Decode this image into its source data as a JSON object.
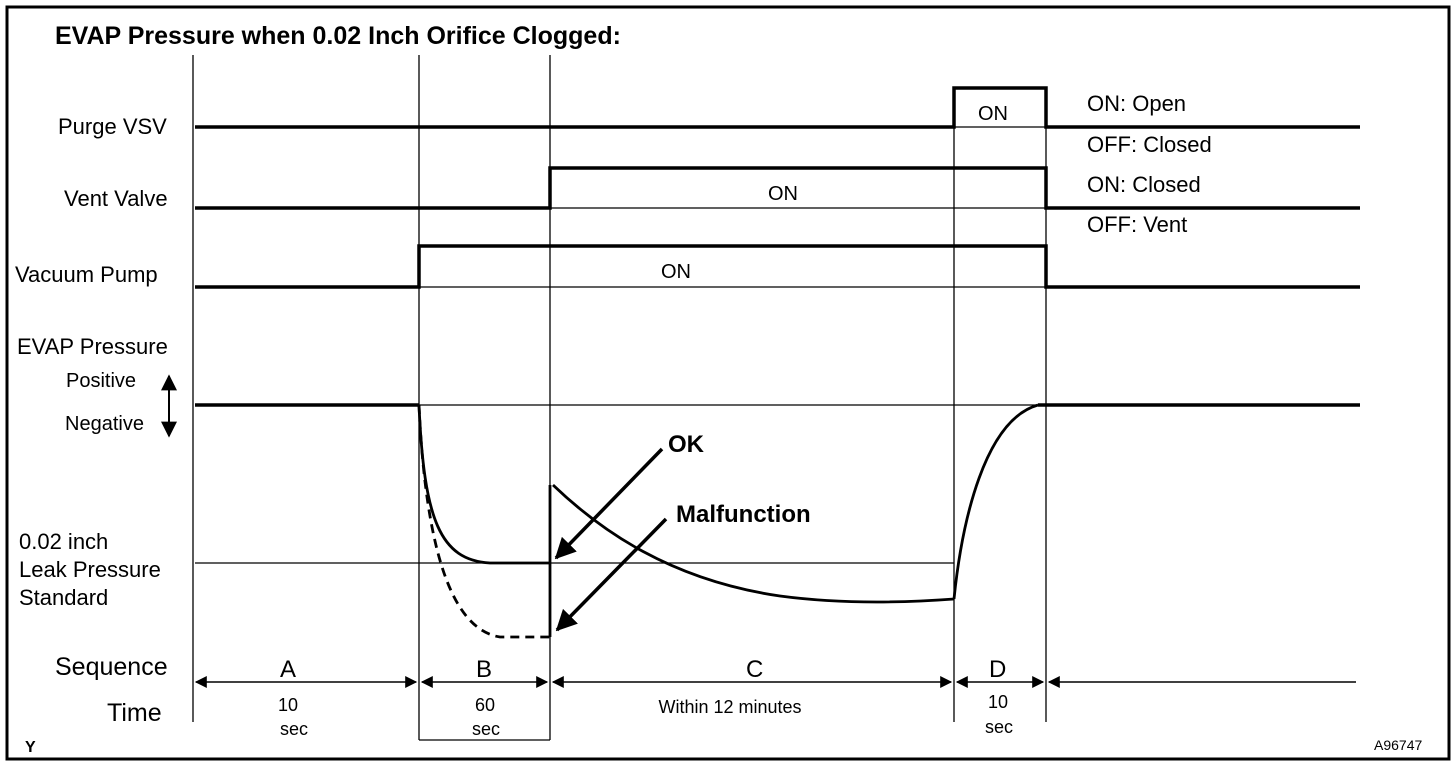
{
  "title": "EVAP Pressure when 0.02 Inch Orifice Clogged:",
  "signals": [
    {
      "label": "Purge VSV",
      "on_text": "ON",
      "state_on": "ON: Open",
      "state_off": "OFF: Closed"
    },
    {
      "label": "Vent Valve",
      "on_text": "ON",
      "state_on": "ON: Closed",
      "state_off": "OFF: Vent"
    },
    {
      "label": "Vacuum Pump",
      "on_text": "ON"
    }
  ],
  "pressure": {
    "label": "EVAP Pressure",
    "positive": "Positive",
    "negative": "Negative",
    "leak_standard": [
      "0.02 inch",
      "Leak Pressure",
      "Standard"
    ],
    "ok_label": "OK",
    "malfunction_label": "Malfunction"
  },
  "sequence": {
    "label": "Sequence",
    "time_label": "Time",
    "steps": [
      {
        "letter": "A",
        "time": [
          "10",
          "sec"
        ]
      },
      {
        "letter": "B",
        "time": [
          "60",
          "sec"
        ]
      },
      {
        "letter": "C",
        "time": [
          "Within 12 minutes"
        ]
      },
      {
        "letter": "D",
        "time": [
          "10",
          "sec"
        ]
      }
    ]
  },
  "corner_mark": "Y",
  "figure_code": "A96747"
}
